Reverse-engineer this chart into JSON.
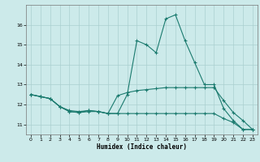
{
  "xlabel": "Humidex (Indice chaleur)",
  "bg_color": "#cceaea",
  "line_color": "#1a7a6e",
  "grid_color": "#aacfcf",
  "xlim": [
    -0.5,
    23.5
  ],
  "ylim": [
    10.5,
    17.0
  ],
  "xticks": [
    0,
    1,
    2,
    3,
    4,
    5,
    6,
    7,
    8,
    9,
    10,
    11,
    12,
    13,
    14,
    15,
    16,
    17,
    18,
    19,
    20,
    21,
    22,
    23
  ],
  "yticks": [
    11,
    12,
    13,
    14,
    15,
    16
  ],
  "line1_x": [
    0,
    1,
    2,
    3,
    4,
    5,
    6,
    7,
    8,
    9,
    10,
    11,
    12,
    13,
    14,
    15,
    16,
    17,
    18,
    19,
    20,
    21,
    22,
    23
  ],
  "line1_y": [
    12.5,
    12.4,
    12.3,
    11.9,
    11.7,
    11.65,
    11.7,
    11.65,
    11.55,
    11.55,
    12.5,
    15.2,
    15.0,
    14.6,
    16.3,
    16.5,
    15.2,
    14.1,
    13.0,
    13.0,
    11.8,
    11.2,
    10.75,
    10.75
  ],
  "line2_x": [
    0,
    1,
    2,
    3,
    4,
    5,
    6,
    7,
    8,
    9,
    10,
    11,
    12,
    13,
    14,
    15,
    16,
    17,
    18,
    19,
    20,
    21,
    22,
    23
  ],
  "line2_y": [
    12.5,
    12.4,
    12.3,
    11.9,
    11.65,
    11.6,
    11.7,
    11.65,
    11.55,
    12.45,
    12.6,
    12.7,
    12.75,
    12.8,
    12.85,
    12.85,
    12.85,
    12.85,
    12.85,
    12.85,
    12.2,
    11.6,
    11.2,
    10.75
  ],
  "line3_x": [
    0,
    1,
    2,
    3,
    4,
    5,
    6,
    7,
    8,
    9,
    10,
    11,
    12,
    13,
    14,
    15,
    16,
    17,
    18,
    19,
    20,
    21,
    22,
    23
  ],
  "line3_y": [
    12.5,
    12.4,
    12.3,
    11.9,
    11.65,
    11.6,
    11.65,
    11.65,
    11.55,
    11.55,
    11.55,
    11.55,
    11.55,
    11.55,
    11.55,
    11.55,
    11.55,
    11.55,
    11.55,
    11.55,
    11.3,
    11.1,
    10.75,
    10.75
  ]
}
